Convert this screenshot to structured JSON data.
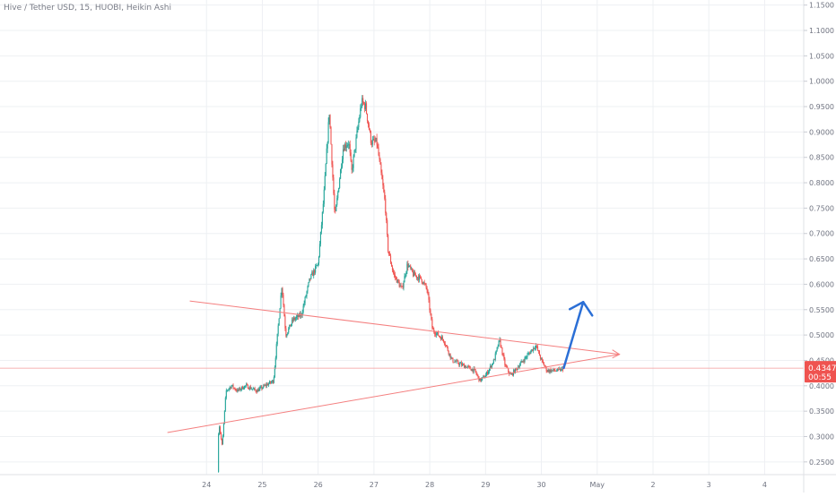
{
  "header": {
    "title": "Hive / Tether USD, 15, HUOBI, Heikin Ashi"
  },
  "colors": {
    "up": "#26a69a",
    "down": "#ef5350",
    "trendline": "#f47f7f",
    "price_line": "#f59a9a",
    "arrow": "#2b6fd6",
    "grid": "#eef0f3",
    "axis_text": "#6f7380",
    "badge": "#ef5350"
  },
  "price_badge": {
    "price": "0.4347",
    "countdown": "00:55"
  },
  "chart_data": {
    "type": "candlestick",
    "symbol": "Hive / Tether USD",
    "interval": "15",
    "exchange": "HUOBI",
    "style": "Heikin Ashi",
    "x_ticks": [
      "24",
      "25",
      "26",
      "27",
      "28",
      "29",
      "30",
      "May",
      "2",
      "3",
      "4"
    ],
    "y_ticks": [
      "0.2500",
      "0.3000",
      "0.3500",
      "0.4000",
      "0.4500",
      "0.5000",
      "0.5500",
      "0.6000",
      "0.6500",
      "0.7000",
      "0.7500",
      "0.8000",
      "0.8500",
      "0.9000",
      "0.9500",
      "1.0000",
      "1.0500",
      "1.1000",
      "1.1500"
    ],
    "ylim": [
      0.225,
      1.16
    ],
    "xlim": [
      -3.7,
      10.7
    ],
    "last_price": 0.4347,
    "price_path": [
      [
        0.2,
        0.23
      ],
      [
        0.22,
        0.33
      ],
      [
        0.28,
        0.28
      ],
      [
        0.35,
        0.39
      ],
      [
        0.45,
        0.4
      ],
      [
        0.55,
        0.39
      ],
      [
        0.7,
        0.4
      ],
      [
        0.9,
        0.39
      ],
      [
        1.05,
        0.4
      ],
      [
        1.2,
        0.41
      ],
      [
        1.35,
        0.6
      ],
      [
        1.42,
        0.5
      ],
      [
        1.55,
        0.53
      ],
      [
        1.7,
        0.54
      ],
      [
        1.85,
        0.61
      ],
      [
        2.0,
        0.64
      ],
      [
        2.1,
        0.77
      ],
      [
        2.2,
        0.94
      ],
      [
        2.3,
        0.73
      ],
      [
        2.45,
        0.87
      ],
      [
        2.55,
        0.88
      ],
      [
        2.6,
        0.82
      ],
      [
        2.7,
        0.9
      ],
      [
        2.78,
        0.96
      ],
      [
        2.85,
        0.95
      ],
      [
        2.95,
        0.88
      ],
      [
        3.05,
        0.88
      ],
      [
        3.2,
        0.76
      ],
      [
        3.25,
        0.67
      ],
      [
        3.35,
        0.62
      ],
      [
        3.5,
        0.59
      ],
      [
        3.6,
        0.64
      ],
      [
        3.7,
        0.62
      ],
      [
        3.85,
        0.61
      ],
      [
        3.95,
        0.59
      ],
      [
        4.05,
        0.51
      ],
      [
        4.25,
        0.49
      ],
      [
        4.4,
        0.45
      ],
      [
        4.6,
        0.44
      ],
      [
        4.8,
        0.43
      ],
      [
        4.9,
        0.41
      ],
      [
        5.0,
        0.42
      ],
      [
        5.15,
        0.45
      ],
      [
        5.25,
        0.49
      ],
      [
        5.35,
        0.44
      ],
      [
        5.45,
        0.42
      ],
      [
        5.6,
        0.44
      ],
      [
        5.75,
        0.46
      ],
      [
        5.9,
        0.48
      ],
      [
        6.0,
        0.45
      ],
      [
        6.1,
        0.43
      ],
      [
        6.2,
        0.43
      ],
      [
        6.3,
        0.43
      ],
      [
        6.4,
        0.434
      ]
    ],
    "annotations": {
      "upper_trendline": [
        [
          -0.3,
          0.567
        ],
        [
          7.4,
          0.462
        ]
      ],
      "lower_trendline": [
        [
          -0.7,
          0.308
        ],
        [
          7.4,
          0.462
        ]
      ],
      "price_line": 0.4347,
      "arrow": [
        [
          6.4,
          0.435
        ],
        [
          6.75,
          0.565
        ]
      ]
    }
  }
}
